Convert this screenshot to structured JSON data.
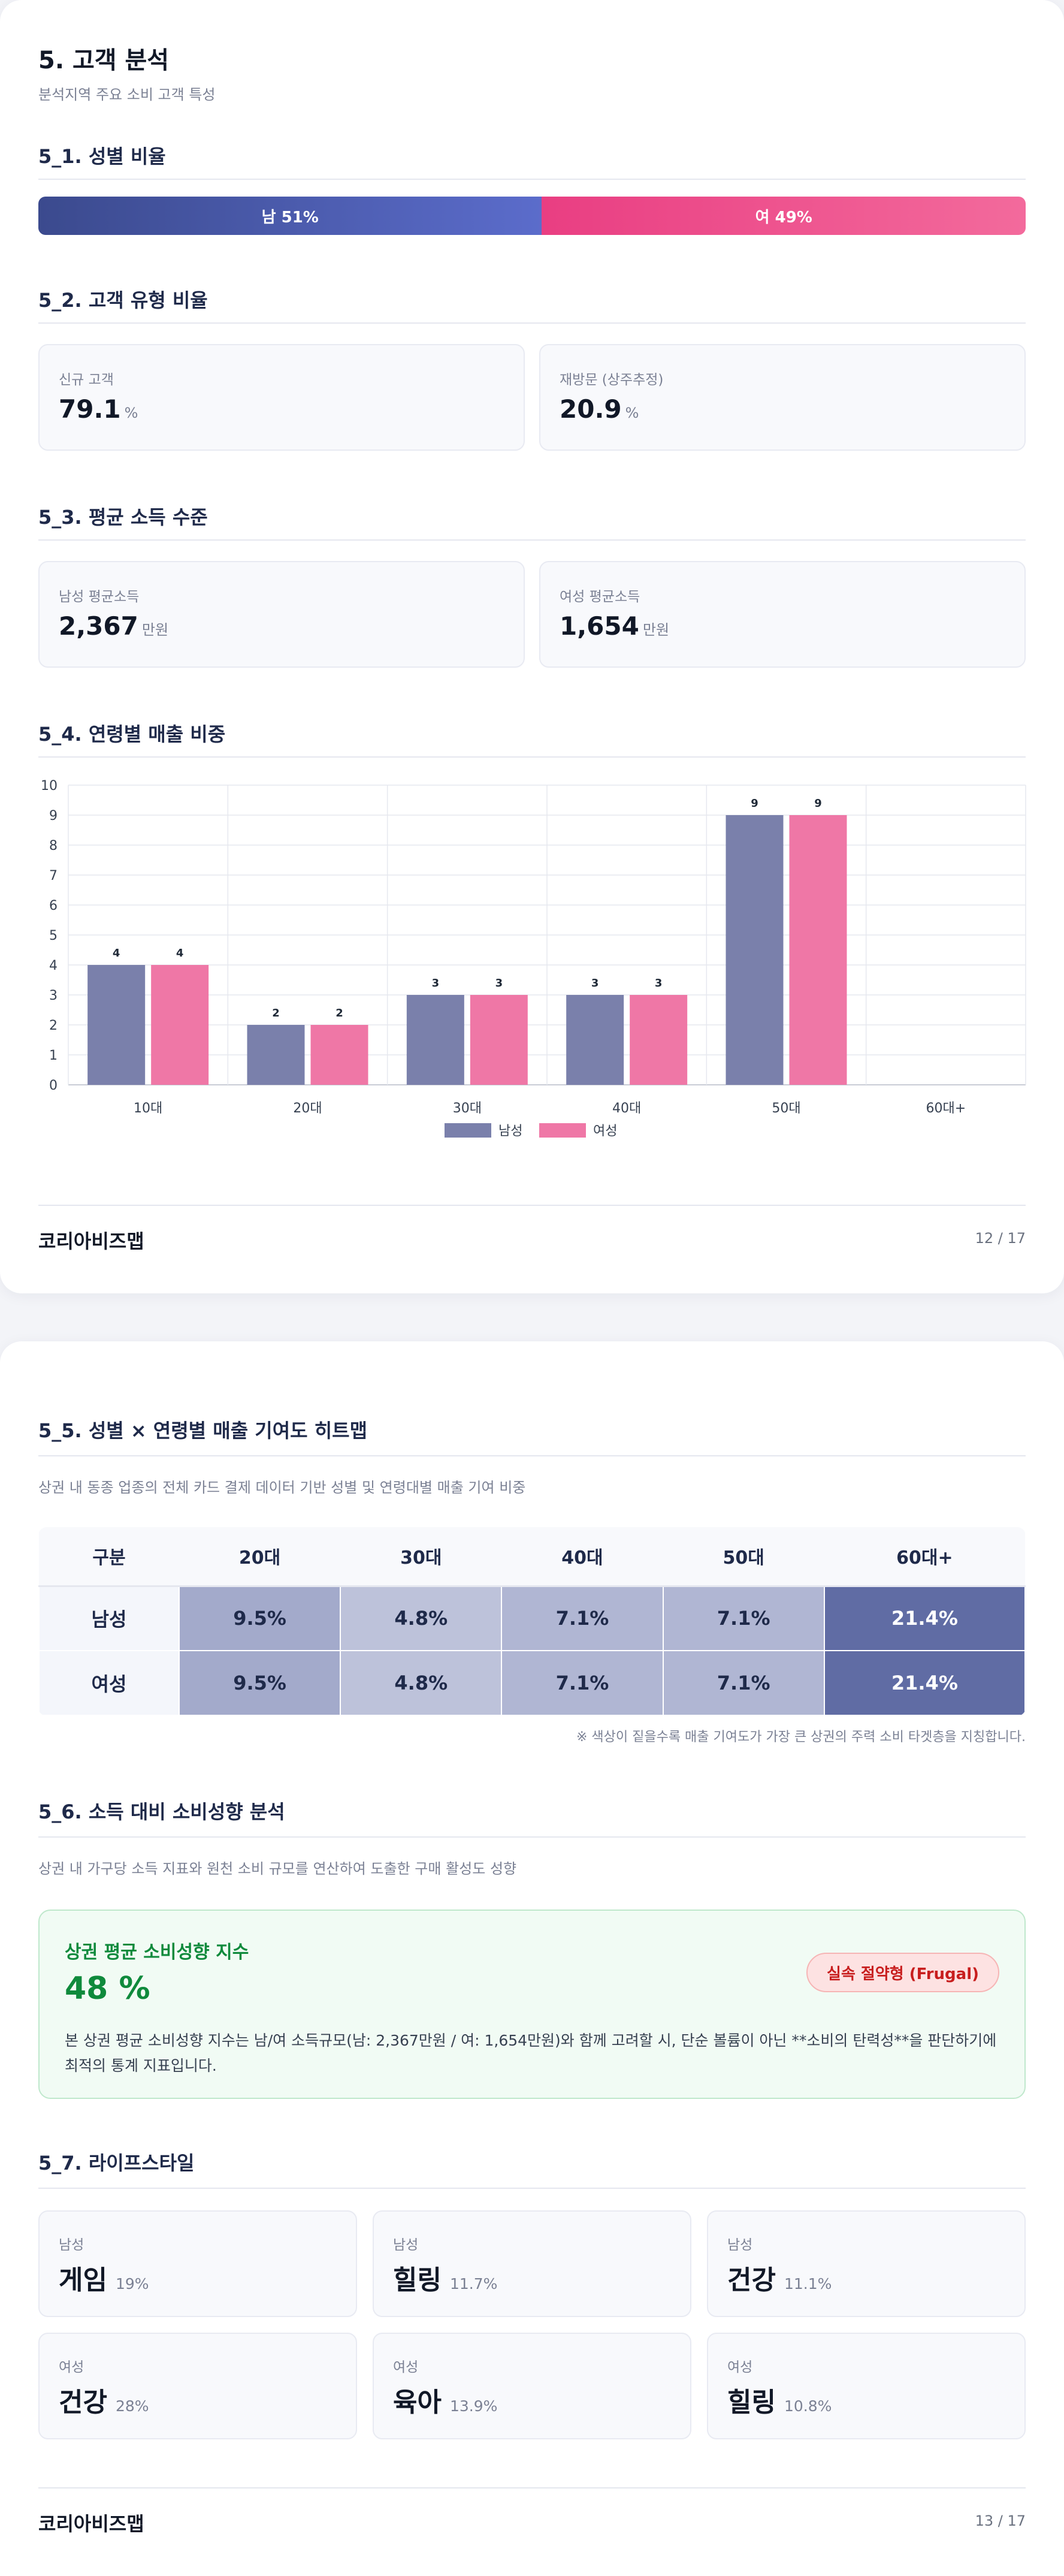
{
  "page1": {
    "title": "5. 고객 분석",
    "subtitle": "분석지역 주요 소비 고객 특성",
    "gender": {
      "heading": "5_1. 성별 비율",
      "male_label": "남 51%",
      "female_label": "여 49%",
      "male_share": 51,
      "female_share": 49,
      "male_color": "#4a5aad",
      "female_color": "#ee508d"
    },
    "customer_type": {
      "heading": "5_2. 고객 유형 비율",
      "new_label": "신규 고객",
      "new_value": "79.1",
      "new_unit": "%",
      "return_label": "재방문 (상주추정)",
      "return_value": "20.9",
      "return_unit": "%"
    },
    "income": {
      "heading": "5_3. 평균 소득 수준",
      "male_label": "남성 평균소득",
      "male_value": "2,367",
      "male_unit": "만원",
      "female_label": "여성 평균소득",
      "female_value": "1,654",
      "female_unit": "만원"
    },
    "age_sales": {
      "heading": "5_4. 연령별 매출 비중"
    },
    "footer": {
      "brand": "코리아비즈맵",
      "page": "12 / 17"
    }
  },
  "chart_data": {
    "type": "bar",
    "categories": [
      "10대",
      "20대",
      "30대",
      "40대",
      "50대",
      "60대+"
    ],
    "series": [
      {
        "name": "남성",
        "values": [
          4,
          2,
          3,
          3,
          9,
          0
        ],
        "color": "#7a80ab"
      },
      {
        "name": "여성",
        "values": [
          4,
          2,
          3,
          3,
          9,
          0
        ],
        "color": "#ef77a6"
      }
    ],
    "data_labels": [
      [
        "4",
        "2",
        "3",
        "3",
        "9",
        ""
      ],
      [
        "4",
        "2",
        "3",
        "3",
        "9",
        ""
      ]
    ],
    "ylim": [
      0,
      10
    ],
    "yticks": [
      "0",
      "1",
      "2",
      "3",
      "4",
      "5",
      "6",
      "7",
      "8",
      "9",
      "10"
    ],
    "grid": true,
    "legend_position": "bottom-center"
  },
  "page2": {
    "heatmap": {
      "heading": "5_5. 성별 × 연령별 매출 기여도 히트맵",
      "subtitle": "상권 내 동종 업종의 전체 카드 결제 데이터 기반 성별 및 연령대별 매출 기여 비중",
      "corner": "구분",
      "columns": [
        "20대",
        "30대",
        "40대",
        "50대",
        "60대+"
      ],
      "rows": [
        {
          "label": "남성",
          "cells": [
            "9.5%",
            "4.8%",
            "7.1%",
            "7.1%",
            "21.4%"
          ]
        },
        {
          "label": "여성",
          "cells": [
            "9.5%",
            "4.8%",
            "7.1%",
            "7.1%",
            "21.4%"
          ]
        }
      ],
      "values": [
        9.5,
        4.8,
        7.1,
        7.1,
        21.4
      ],
      "note": "※ 색상이 짙을수록 매출 기여도가 가장 큰 상권의 주력 소비 타겟층을 지칭합니다."
    },
    "spending": {
      "heading": "5_6. 소득 대비 소비성향 분석",
      "subtitle": "상권 내 가구당 소득 지표와 원천 소비 규모를 연산하여 도출한 구매 활성도 성향",
      "index_title": "상권 평균 소비성향 지수",
      "index_value": "48 %",
      "badge": "실속 절약형 (Frugal)",
      "description": "본 상권 평균 소비성향 지수는 남/여 소득규모(남: 2,367만원 / 여: 1,654만원)와 함께 고려할 시, 단순 볼륨이 아닌 **소비의 탄력성**을 판단하기에 최적의 통계 지표입니다."
    },
    "lifestyle": {
      "heading": "5_7. 라이프스타일",
      "items": [
        {
          "gender": "남성",
          "name": "게임",
          "pct": "19%"
        },
        {
          "gender": "남성",
          "name": "힐링",
          "pct": "11.7%"
        },
        {
          "gender": "남성",
          "name": "건강",
          "pct": "11.1%"
        },
        {
          "gender": "여성",
          "name": "건강",
          "pct": "28%"
        },
        {
          "gender": "여성",
          "name": "육아",
          "pct": "13.9%"
        },
        {
          "gender": "여성",
          "name": "힐링",
          "pct": "10.8%"
        }
      ]
    },
    "footer": {
      "brand": "코리아비즈맵",
      "page": "13 / 17"
    }
  }
}
